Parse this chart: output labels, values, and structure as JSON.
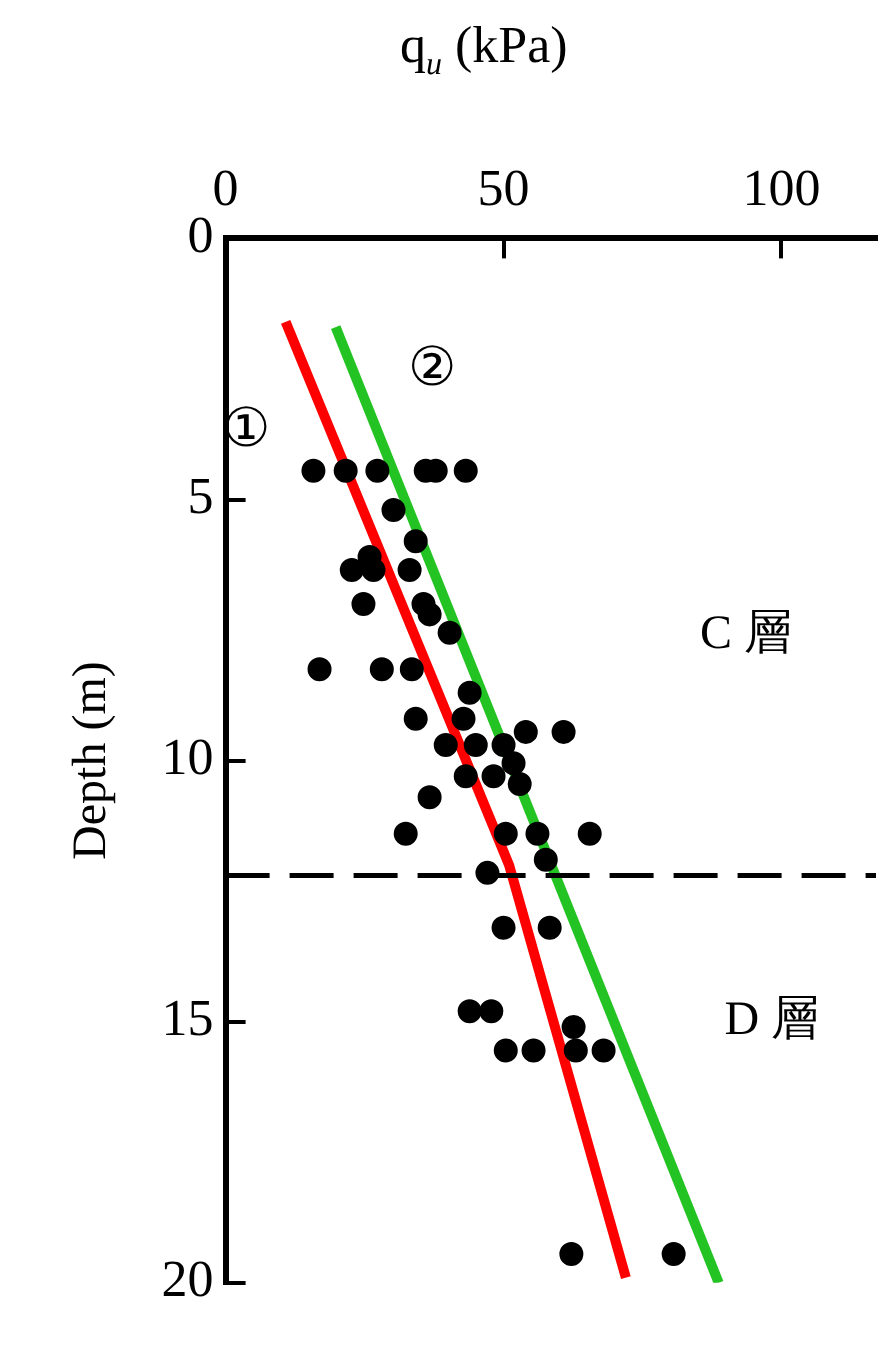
{
  "chart_data": {
    "type": "scatter",
    "xlabel": "q$_{u}$ (kPa)",
    "ylabel": "Depth (m)",
    "xlim": [
      0,
      117
    ],
    "xticks": [
      0,
      50,
      100
    ],
    "ylim": [
      20,
      0
    ],
    "yticks": [
      0,
      5,
      10,
      15,
      20
    ],
    "grid": false,
    "legend": false,
    "series": [
      {
        "marker": "circle",
        "color": "#000000",
        "x": [
          15.8,
          21.6,
          27.3,
          36,
          37.8,
          43.2,
          30.2,
          34.2,
          25.9,
          22.7,
          26.6,
          33.1,
          24.8,
          35.6,
          36.7,
          40.3,
          16.9,
          28.1,
          33.5,
          43.9,
          34.2,
          42.8,
          54,
          60.8,
          39.6,
          45,
          50,
          51.8,
          43.2,
          48.2,
          52.9,
          36.7,
          32.4,
          50.4,
          56.1,
          65.5,
          57.6,
          47.1,
          50,
          58.3,
          43.9,
          47.8,
          62.6,
          50.4,
          55.4,
          63,
          68,
          62.2,
          80.6
        ],
        "values": [
          4.45,
          4.45,
          4.45,
          4.45,
          4.45,
          4.45,
          5.2,
          5.8,
          6.1,
          6.35,
          6.35,
          6.35,
          7.0,
          7.0,
          7.2,
          7.55,
          8.25,
          8.25,
          8.25,
          8.7,
          9.2,
          9.2,
          9.45,
          9.45,
          9.7,
          9.7,
          9.7,
          10.05,
          10.3,
          10.3,
          10.45,
          10.7,
          11.4,
          11.4,
          11.4,
          11.4,
          11.9,
          12.15,
          13.2,
          13.2,
          14.8,
          14.8,
          15.1,
          15.55,
          15.55,
          15.55,
          15.55,
          19.45,
          19.45
        ]
      },
      {
        "type": "line",
        "name": "①",
        "color": "#ff0000",
        "x": [
          10.8,
          51,
          72
        ],
        "values": [
          1.6,
          12,
          19.9
        ]
      },
      {
        "type": "line",
        "name": "②",
        "color": "#22c322",
        "x": [
          19.8,
          88.7
        ],
        "values": [
          1.7,
          20
        ]
      }
    ],
    "ref_lines": [
      {
        "axis": "y",
        "value": 12.2,
        "line_style": "dashed",
        "color": "#000000"
      }
    ],
    "annotations": [
      "C 層",
      "D 層"
    ]
  }
}
